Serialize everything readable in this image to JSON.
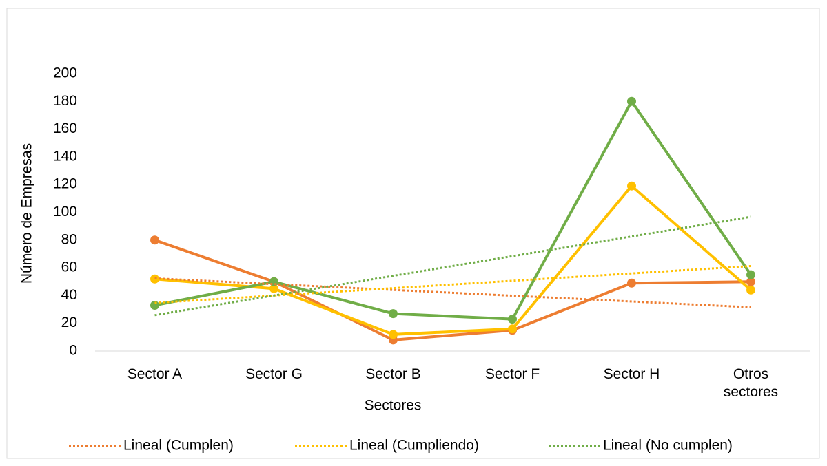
{
  "chart_data": {
    "type": "line",
    "x_label": "Sectores",
    "y_label": "Número de Empresas",
    "categories": [
      "Sector A",
      "Sector G",
      "Sector B",
      "Sector F",
      "Sector H",
      "Otros sectores"
    ],
    "series": [
      {
        "name": "Lineal (Cumplen)",
        "color": "#ed7d31",
        "values": [
          80,
          50,
          8,
          15,
          49,
          50
        ],
        "trendline": true
      },
      {
        "name": "Lineal (Cumpliendo)",
        "color": "#ffc000",
        "values": [
          52,
          45,
          12,
          16,
          119,
          44
        ],
        "trendline": true
      },
      {
        "name": "Lineal (No cumplen)",
        "color": "#70ad47",
        "values": [
          33,
          50,
          27,
          23,
          180,
          55
        ],
        "trendline": true
      }
    ],
    "ylim": [
      0,
      200
    ],
    "yticks": [
      0,
      20,
      40,
      60,
      80,
      100,
      120,
      140,
      160,
      180,
      200
    ],
    "grid": false,
    "legend": "bottom"
  }
}
